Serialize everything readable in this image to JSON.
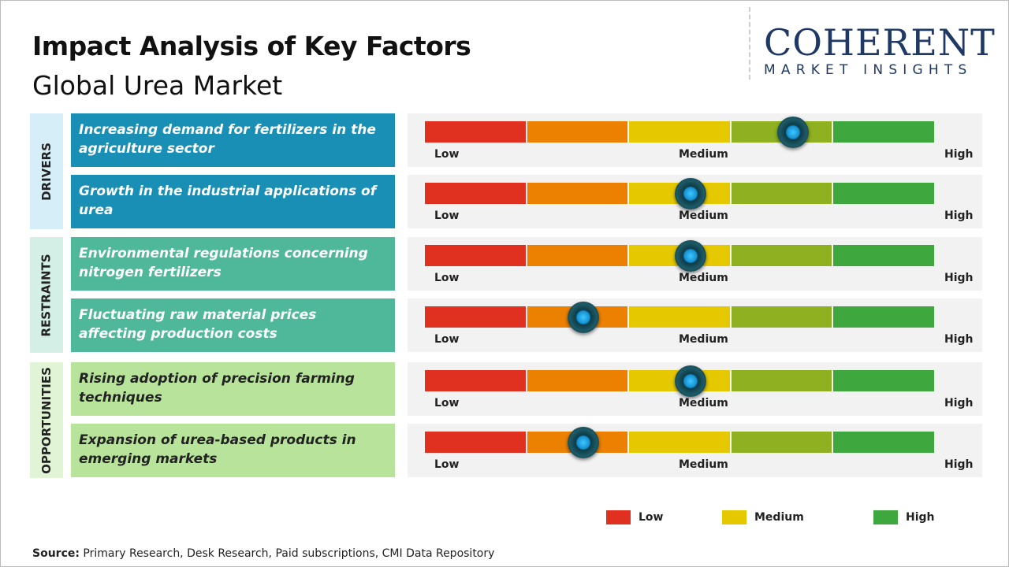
{
  "header": {
    "title": "Impact Analysis of Key Factors",
    "subtitle": "Global Urea Market"
  },
  "logo": {
    "line1": "COHERENT",
    "line2": "MARKET INSIGHTS"
  },
  "colors": {
    "low": "#e03020",
    "low_mid": "#ec8000",
    "medium": "#e6c800",
    "mid_high": "#8fb020",
    "high": "#3ea83e",
    "knob": "#1fb0f0"
  },
  "chart_data": {
    "type": "gauge",
    "scale_labels": [
      "Low",
      "Medium",
      "High"
    ],
    "categories": [
      {
        "name": "DRIVERS",
        "bg": "#d6eef8",
        "box": "#1a8fb5",
        "text": "#ffffff",
        "factors": [
          {
            "label": "Increasing demand for fertilizers in the agriculture sector",
            "impact": 0.72
          },
          {
            "label": "Growth in the industrial applications of urea",
            "impact": 0.52
          }
        ]
      },
      {
        "name": "RESTRAINTS",
        "bg": "#d3efe6",
        "box": "#4fb89a",
        "text": "#ffffff",
        "factors": [
          {
            "label": "Environmental regulations concerning nitrogen fertilizers",
            "impact": 0.52
          },
          {
            "label": "Fluctuating raw material prices affecting production costs",
            "impact": 0.31
          }
        ]
      },
      {
        "name": "OPPORTUNITIES",
        "bg": "#e1f5d6",
        "box": "#b8e39a",
        "text": "#222222",
        "factors": [
          {
            "label": "Rising adoption of precision farming techniques",
            "impact": 0.52
          },
          {
            "label": "Expansion of urea-based products in emerging markets",
            "impact": 0.31
          }
        ]
      }
    ],
    "legend": [
      {
        "label": "Low",
        "color": "#e03020"
      },
      {
        "label": "Medium",
        "color": "#e6c800"
      },
      {
        "label": "High",
        "color": "#3ea83e"
      }
    ]
  },
  "source": {
    "label": "Source:",
    "text": " Primary Research, Desk Research, Paid subscriptions, CMI Data Repository"
  }
}
